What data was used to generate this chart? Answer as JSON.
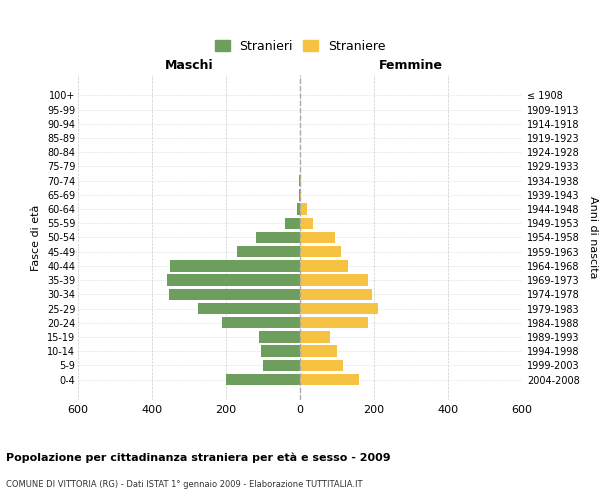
{
  "age_groups": [
    "100+",
    "95-99",
    "90-94",
    "85-89",
    "80-84",
    "75-79",
    "70-74",
    "65-69",
    "60-64",
    "55-59",
    "50-54",
    "45-49",
    "40-44",
    "35-39",
    "30-34",
    "25-29",
    "20-24",
    "15-19",
    "10-14",
    "5-9",
    "0-4"
  ],
  "birth_years": [
    "≤ 1908",
    "1909-1913",
    "1914-1918",
    "1919-1923",
    "1924-1928",
    "1929-1933",
    "1934-1938",
    "1939-1943",
    "1944-1948",
    "1949-1953",
    "1954-1958",
    "1959-1963",
    "1964-1968",
    "1969-1973",
    "1974-1978",
    "1979-1983",
    "1984-1988",
    "1989-1993",
    "1994-1998",
    "1999-2003",
    "2004-2008"
  ],
  "males": [
    0,
    0,
    0,
    0,
    0,
    1,
    2,
    4,
    8,
    40,
    120,
    170,
    350,
    360,
    355,
    275,
    210,
    110,
    105,
    100,
    200
  ],
  "females": [
    0,
    0,
    0,
    0,
    0,
    1,
    2,
    3,
    20,
    35,
    95,
    110,
    130,
    185,
    195,
    210,
    185,
    80,
    100,
    115,
    160
  ],
  "male_color": "#6d9e5e",
  "female_color": "#f5c242",
  "background_color": "#ffffff",
  "grid_color": "#cccccc",
  "title": "Popolazione per cittadinanza straniera per età e sesso - 2009",
  "subtitle": "COMUNE DI VITTORIA (RG) - Dati ISTAT 1° gennaio 2009 - Elaborazione TUTTITALIA.IT",
  "xlabel_left": "Maschi",
  "xlabel_right": "Femmine",
  "ylabel_left": "Fasce di età",
  "ylabel_right": "Anni di nascita",
  "legend_males": "Stranieri",
  "legend_females": "Straniere",
  "xlim": 600,
  "bar_height": 0.8
}
